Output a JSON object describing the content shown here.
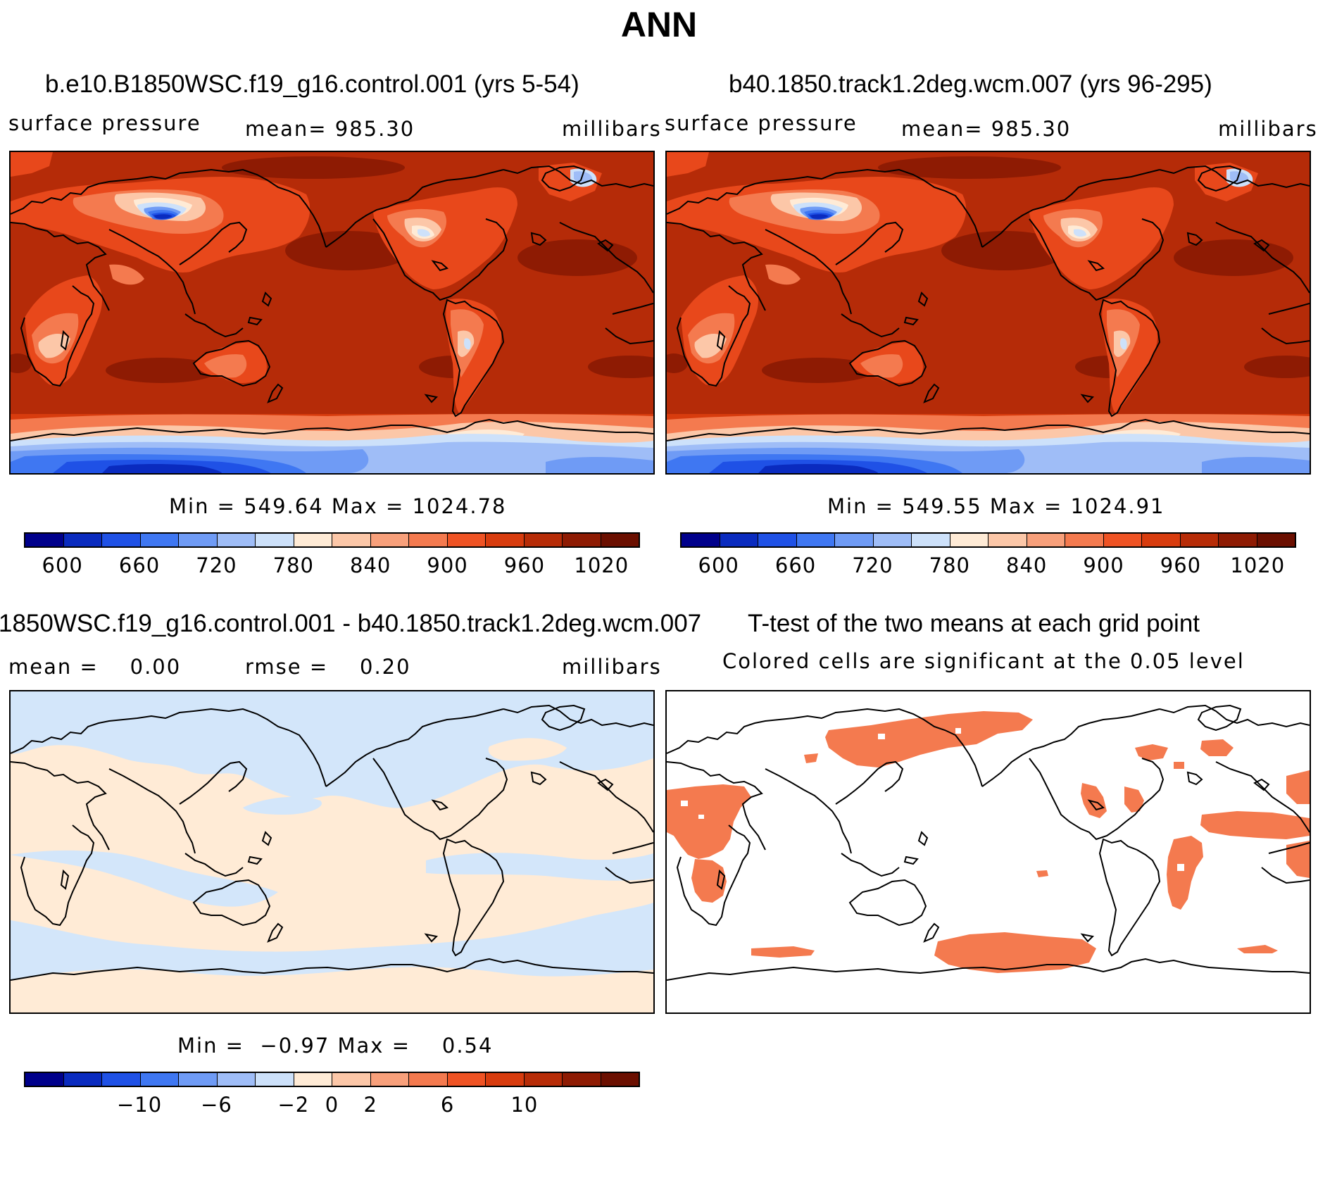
{
  "figure": {
    "title": "ANN",
    "variable": "surface pressure",
    "units": "millibars"
  },
  "panels": {
    "p1": {
      "title": "b.e10.B1850WSC.f19_g16.control.001 (yrs 5-54)",
      "variable_label": "surface pressure",
      "mean_label": "mean=",
      "mean_value": "985.30",
      "units": "millibars",
      "stats": "Min = 549.64 Max = 1024.78"
    },
    "p2": {
      "title": "b40.1850.track1.2deg.wcm.007 (yrs 96-295)",
      "variable_label": "surface pressure",
      "mean_label": "mean=",
      "mean_value": "985.30",
      "units": "millibars",
      "stats": "Min = 549.55 Max = 1024.91"
    },
    "p3": {
      "title": "1850WSC.f19_g16.control.001 - b40.1850.track1.2deg.wcm.007",
      "mean_label": "mean =",
      "mean_value": "0.00",
      "rmse_label": "rmse =",
      "rmse_value": "0.20",
      "units": "millibars",
      "stats_min_label": "Min =",
      "stats_min": "−0.97",
      "stats_max_label": "Max =",
      "stats_max": "0.54"
    },
    "p4": {
      "title": "T-test of the two means at each grid point",
      "subtitle": "Colored cells are significant at the 0.05 level",
      "significance_level": 0.05
    }
  },
  "colorbars": {
    "absolute": {
      "tick_labels": [
        "600",
        "660",
        "720",
        "780",
        "840",
        "900",
        "960",
        "1020"
      ],
      "tick_values": [
        600,
        660,
        720,
        780,
        840,
        900,
        960,
        1020
      ],
      "levels": [
        570,
        600,
        630,
        660,
        690,
        720,
        750,
        780,
        810,
        840,
        870,
        900,
        930,
        960,
        990,
        1020,
        1050
      ],
      "colors": [
        "#00008b",
        "#0a2bbf",
        "#1f51e6",
        "#3f77f2",
        "#6f9bf5",
        "#9fbdf7",
        "#cde1fa",
        "#ffebd6",
        "#fcc7a8",
        "#f8a07b",
        "#f47a4f",
        "#ef5324",
        "#d83c0e",
        "#b72c07",
        "#8e1b03",
        "#6b0f00"
      ]
    },
    "difference": {
      "tick_labels": [
        "−10",
        "−6",
        "−2",
        "0",
        "2",
        "6",
        "10"
      ],
      "tick_values": [
        -10,
        -6,
        -2,
        0,
        2,
        6,
        10
      ],
      "levels": [
        -16,
        -14,
        -12,
        -10,
        -8,
        -6,
        -4,
        -2,
        0,
        2,
        4,
        6,
        8,
        10,
        12,
        14,
        16
      ],
      "colors": [
        "#00008b",
        "#0a2bbf",
        "#1f51e6",
        "#3f77f2",
        "#6f9bf5",
        "#9fbdf7",
        "#cde1fa",
        "#ffebd6",
        "#fcc7a8",
        "#f8a07b",
        "#f47a4f",
        "#ef5324",
        "#d83c0e",
        "#b72c07",
        "#8e1b03",
        "#6b0f00"
      ]
    }
  },
  "colors": {
    "ocean_high": "#b52b08",
    "land_mid": "#e8481b",
    "land_low": "#f8a07b",
    "plateau": "#0a2bbf",
    "diff_pos": "#ffebd6",
    "diff_neg": "#d3e6fa",
    "ttest_sig": "#f47a4f",
    "coast": "#000000"
  }
}
